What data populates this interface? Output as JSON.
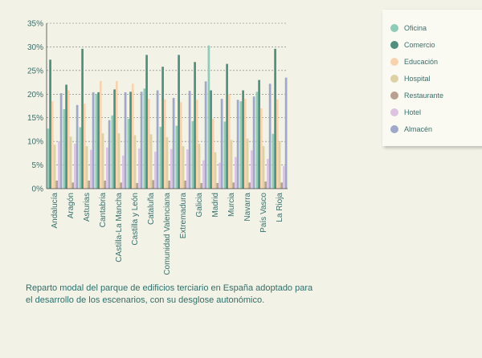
{
  "chart_data": {
    "type": "bar",
    "title": "",
    "xlabel": "",
    "ylabel": "",
    "ylim": [
      0,
      35
    ],
    "y_ticks": [
      "0%",
      "5%",
      "10%",
      "15%",
      "20%",
      "25%",
      "30%",
      "35%"
    ],
    "grid": true,
    "legend_position": "top-right",
    "categories": [
      "Andalucía",
      "Aragón",
      "Asturias",
      "Cantabria",
      "CAstilla-La Mancha",
      "Castilla y León",
      "Cataluña",
      "Comunidad Valenciana",
      "Extremadura",
      "Galicia",
      "Madrid",
      "Murcia",
      "Navarra",
      "País Vasco",
      "La Rioja"
    ],
    "series": [
      {
        "name": "Oficina",
        "color": "#8fcbb8",
        "values": [
          12.7,
          16.8,
          13.0,
          20.0,
          15.5,
          14.8,
          21.2,
          13.1,
          13.3,
          14.3,
          30.3,
          14.2,
          18.5,
          20.5,
          11.6
        ]
      },
      {
        "name": "Comercio",
        "color": "#4f8f7e",
        "values": [
          27.3,
          22.0,
          29.6,
          20.4,
          21.0,
          20.5,
          28.3,
          25.8,
          28.3,
          26.8,
          20.8,
          26.4,
          20.8,
          23.0,
          29.6
        ]
      },
      {
        "name": "Educación",
        "color": "#f8d3b0",
        "values": [
          18.5,
          20.8,
          18.0,
          22.8,
          22.8,
          22.2,
          19.0,
          18.9,
          18.3,
          18.8,
          14.8,
          20.0,
          19.0,
          17.0,
          18.9
        ]
      },
      {
        "name": "Hospital",
        "color": "#ddd1a6",
        "values": [
          9.3,
          11.0,
          9.0,
          11.7,
          11.7,
          11.3,
          11.5,
          10.9,
          9.0,
          9.5,
          7.7,
          10.3,
          10.6,
          9.0,
          10.0
        ]
      },
      {
        "name": "Restaurante",
        "color": "#b8a191",
        "values": [
          1.7,
          1.3,
          1.7,
          1.7,
          1.3,
          1.2,
          1.8,
          1.7,
          1.7,
          1.2,
          1.2,
          1.3,
          1.3,
          1.5,
          1.3
        ]
      },
      {
        "name": "Hotel",
        "color": "#dcc4e0",
        "values": [
          10.0,
          9.5,
          8.2,
          8.7,
          7.0,
          8.5,
          7.8,
          8.4,
          8.3,
          6.0,
          5.5,
          6.7,
          8.1,
          6.3,
          4.8
        ]
      },
      {
        "name": "Almacén",
        "color": "#9fa8c8",
        "values": [
          20.2,
          17.7,
          20.4,
          14.5,
          20.4,
          20.5,
          20.8,
          19.2,
          20.7,
          22.7,
          19.0,
          18.8,
          19.5,
          22.2,
          23.5
        ]
      }
    ]
  },
  "caption": {
    "line1": "Reparto modal del parque de edificios terciario en España adoptado para",
    "line2": "el desarrollo de los escenarios, con su desglose autonómico."
  }
}
